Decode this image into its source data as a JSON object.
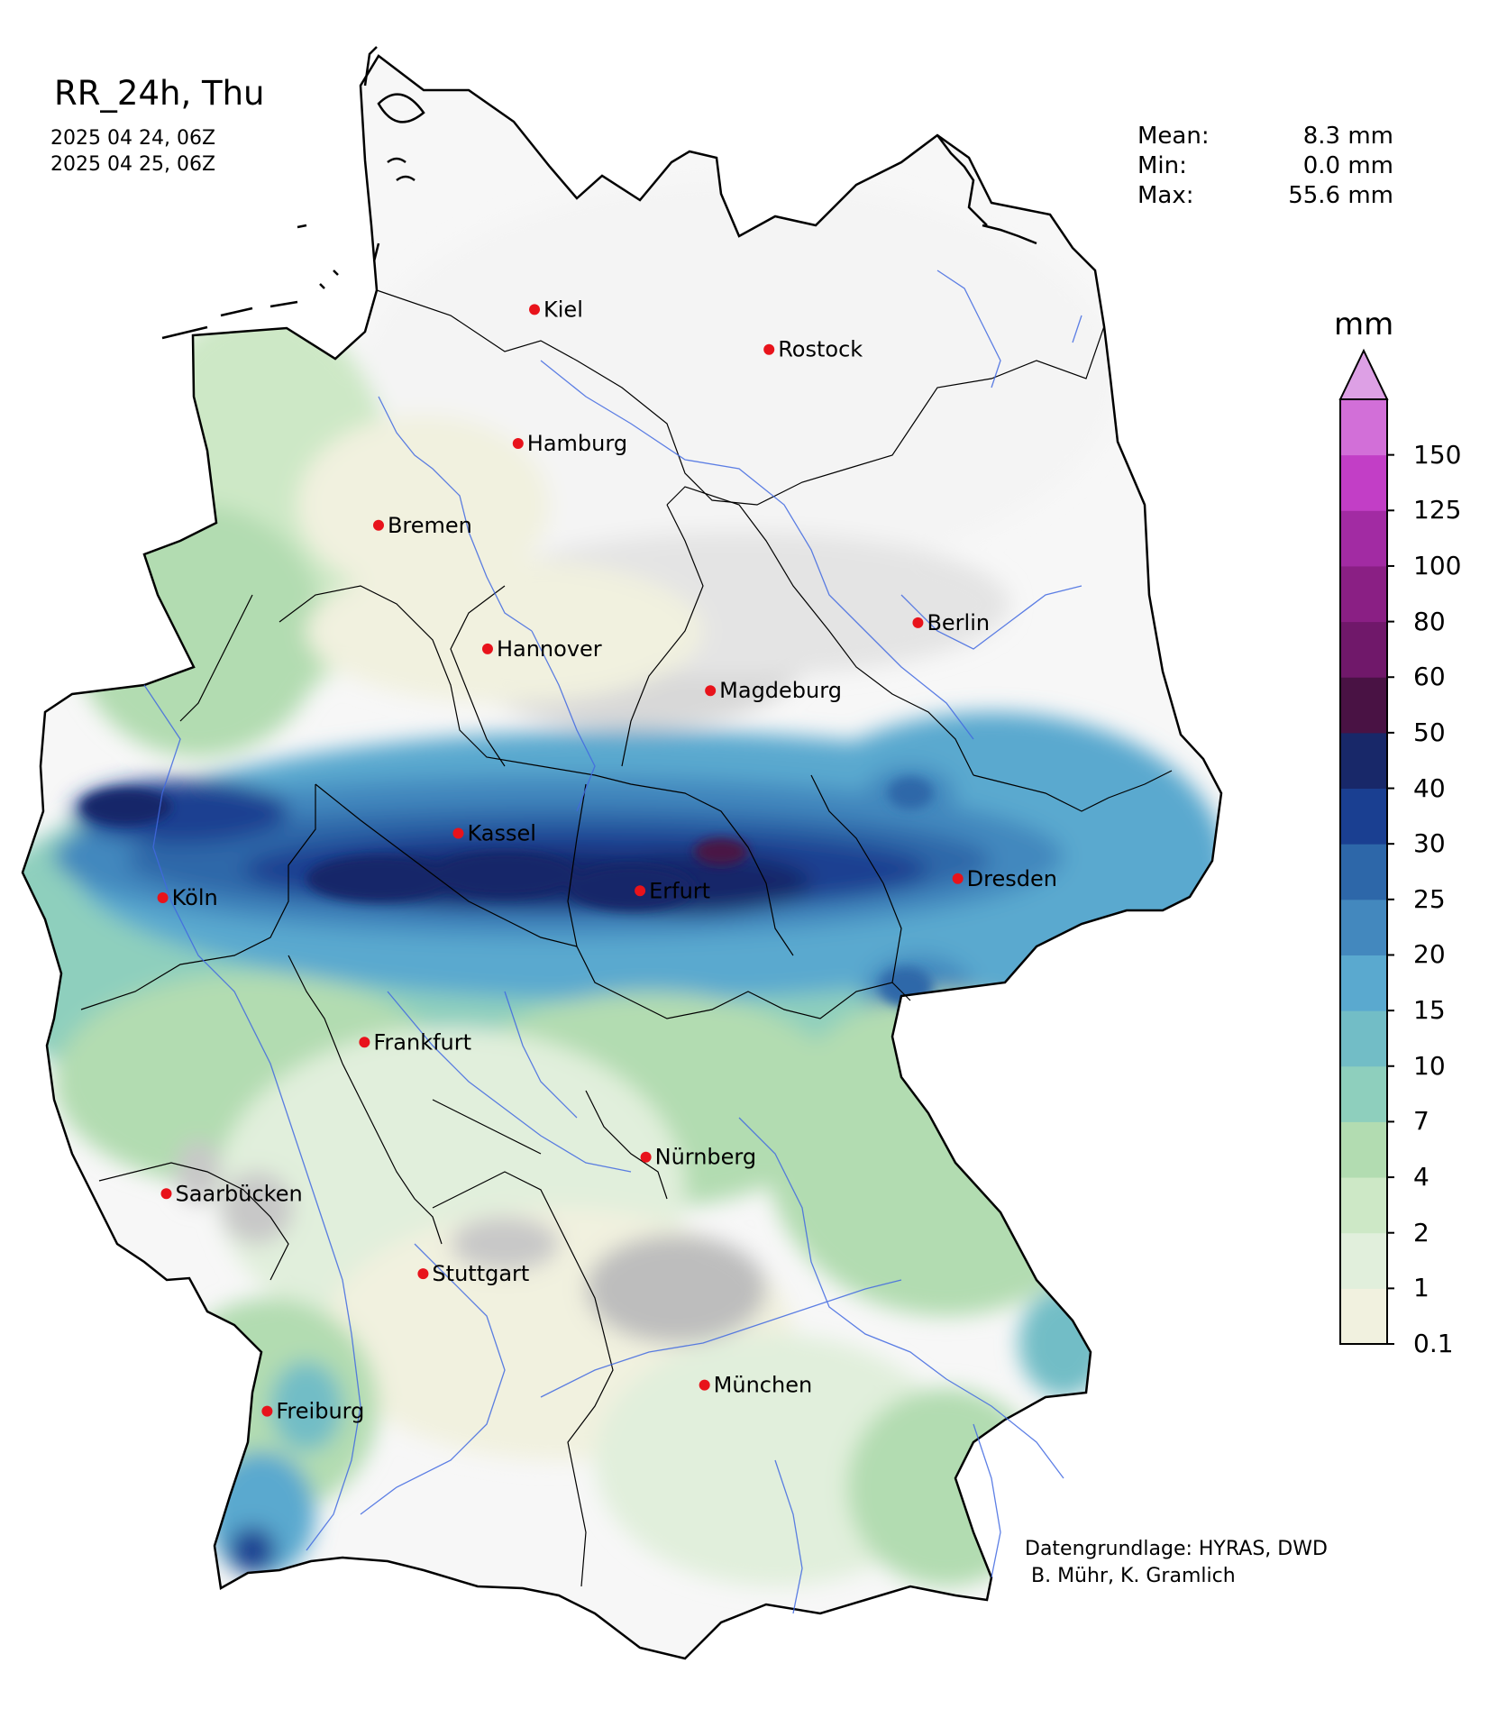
{
  "title": "RR_24h, Thu",
  "dates": [
    "2025 04 24, 06Z",
    "2025 04 25, 06Z"
  ],
  "stats": [
    {
      "label": "Mean:",
      "value": "8.3 mm"
    },
    {
      "label": "Min:",
      "value": "0.0 mm"
    },
    {
      "label": "Max:",
      "value": "55.6 mm"
    }
  ],
  "colorbar": {
    "unit": "mm",
    "levels": [
      "0.1",
      "1",
      "2",
      "4",
      "7",
      "10",
      "15",
      "20",
      "25",
      "30",
      "40",
      "50",
      "60",
      "80",
      "100",
      "125",
      "150"
    ],
    "colors": [
      "#f1f1df",
      "#e1efdc",
      "#cde8c6",
      "#b2dcb1",
      "#8ecfbd",
      "#72bdc6",
      "#5aa9cf",
      "#4388be",
      "#2d67a9",
      "#1a3f91",
      "#182869",
      "#491244",
      "#70186a",
      "#8a1f84",
      "#a22ba3",
      "#c23ec6",
      "#d26fd8"
    ],
    "extend_color": "#dda0e5"
  },
  "cities": [
    {
      "name": "Kiel",
      "lon": 10.13,
      "lat": 54.32
    },
    {
      "name": "Rostock",
      "lon": 12.13,
      "lat": 54.09
    },
    {
      "name": "Hamburg",
      "lon": 9.99,
      "lat": 53.55
    },
    {
      "name": "Bremen",
      "lon": 8.8,
      "lat": 53.08
    },
    {
      "name": "Berlin",
      "lon": 13.4,
      "lat": 52.52
    },
    {
      "name": "Hannover",
      "lon": 9.73,
      "lat": 52.37
    },
    {
      "name": "Magdeburg",
      "lon": 11.63,
      "lat": 52.13
    },
    {
      "name": "Kassel",
      "lon": 9.48,
      "lat": 51.31
    },
    {
      "name": "Dresden",
      "lon": 13.74,
      "lat": 51.05
    },
    {
      "name": "Köln",
      "lon": 6.96,
      "lat": 50.94
    },
    {
      "name": "Erfurt",
      "lon": 11.03,
      "lat": 50.98
    },
    {
      "name": "Frankfurt",
      "lon": 8.68,
      "lat": 50.11
    },
    {
      "name": "Nürnberg",
      "lon": 11.08,
      "lat": 49.45
    },
    {
      "name": "Saarbücken",
      "lon": 6.99,
      "lat": 49.24
    },
    {
      "name": "Stuttgart",
      "lon": 9.18,
      "lat": 48.78
    },
    {
      "name": "München",
      "lon": 11.58,
      "lat": 48.14
    },
    {
      "name": "Freiburg",
      "lon": 7.85,
      "lat": 47.99
    }
  ],
  "credits": [
    "Datengrundlage: HYRAS, DWD",
    " B. Mühr, K. Gramlich"
  ]
}
